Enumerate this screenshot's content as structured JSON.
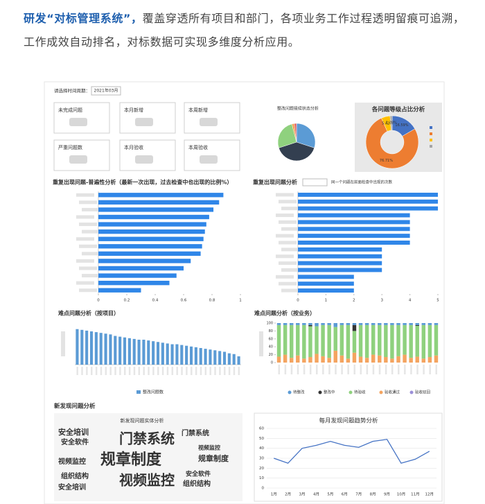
{
  "intro": {
    "lead": "研发“对标管理系统”，",
    "body": "覆盖穿透所有项目和部门，各项业务工作过程透明留痕可追溯，工作成效自动排名，对标数据可实现多维度分析应用。"
  },
  "filter": {
    "label": "请选择时间周期：",
    "value": "2021年03月"
  },
  "kpi_cards": [
    "未完成问题",
    "本月新增",
    "本周新增",
    "严重问题数",
    "本月验收",
    "本周验收"
  ],
  "section_title": "新发现问题分析",
  "chart_data": [
    {
      "type": "pie",
      "title": "整改问题接续状态分析",
      "values": [
        30,
        40,
        26,
        2,
        2
      ],
      "colors": [
        "#5b9bd5",
        "#333f50",
        "#8fd17e",
        "#f0a04b",
        "#e06666"
      ]
    },
    {
      "type": "donut",
      "title": "各问题等级占比分析",
      "values": [
        16.59,
        76.71,
        5.42,
        1.28
      ],
      "value_labels": [
        "16.59%",
        "76.71%",
        "5.42%",
        "1.28%"
      ],
      "colors": [
        "#4472c4",
        "#ed7d31",
        "#ffc000",
        "#a5a5a5"
      ]
    },
    {
      "type": "barh",
      "title": "重复出现问题-普遍性分析（最新一次出现，过去检查中也出现的比例%）",
      "categories": [
        null,
        null,
        null,
        null,
        null,
        null,
        null,
        null,
        null,
        null,
        null,
        null,
        null,
        null
      ],
      "values": [
        0.88,
        0.85,
        0.81,
        0.78,
        0.76,
        0.75,
        0.74,
        0.73,
        0.72,
        0.65,
        0.6,
        0.55,
        0.5,
        0.3
      ],
      "xlim": [
        0,
        1
      ],
      "xticks": [
        0,
        0.2,
        0.4,
        0.6,
        0.8,
        1
      ],
      "color": "#2f86e8"
    },
    {
      "type": "barh",
      "title": "重复出现问题分析",
      "subtitle": "同一个问题在前面检查中出现的次数",
      "categories": [
        null,
        null,
        null,
        null,
        null,
        null,
        null,
        null,
        null,
        null,
        null,
        null,
        null,
        null,
        null
      ],
      "values": [
        5,
        5,
        5,
        4,
        4,
        4,
        4,
        4,
        3,
        3,
        3,
        3,
        2,
        2,
        2
      ],
      "xlim": [
        0,
        5
      ],
      "xticks": [
        0,
        1,
        2,
        3,
        4,
        5
      ],
      "color": "#2f86e8"
    },
    {
      "type": "bar",
      "title": "难点问题分析（按项目）",
      "ylim": [
        0,
        55
      ],
      "series": [
        {
          "name": "整改问题数",
          "color": "#5b9bd5",
          "values": [
            47,
            46,
            45,
            44,
            43,
            42,
            41,
            40,
            38,
            37,
            36,
            35,
            34,
            33,
            33,
            32,
            31,
            30,
            29,
            28,
            27,
            27,
            26,
            25,
            24,
            23,
            22,
            21,
            20,
            19,
            18,
            17,
            15,
            14,
            11
          ]
        }
      ]
    },
    {
      "type": "stacked_bar",
      "title": "难点问题分析（按业务）",
      "ylim": [
        0,
        100
      ],
      "yticks": [
        0,
        20,
        40,
        60,
        80,
        100
      ],
      "series": [
        {
          "name": "待整改",
          "color": "#5b9bd5",
          "values": [
            5,
            5,
            5,
            5,
            5,
            5,
            8,
            5,
            5,
            10,
            5,
            5,
            5,
            5,
            5,
            5,
            5,
            5,
            5,
            5,
            5,
            5,
            5,
            5,
            5,
            5
          ]
        },
        {
          "name": "整改中",
          "color": "#333333",
          "values": [
            0,
            0,
            0,
            0,
            0,
            3,
            0,
            0,
            0,
            0,
            0,
            0,
            15,
            0,
            0,
            0,
            0,
            0,
            0,
            0,
            0,
            0,
            2,
            0,
            0,
            0
          ]
        },
        {
          "name": "待验收",
          "color": "#8fd17e",
          "values": [
            80,
            75,
            83,
            77,
            85,
            78,
            70,
            79,
            83,
            60,
            77,
            85,
            55,
            80,
            83,
            75,
            77,
            81,
            85,
            79,
            75,
            83,
            78,
            85,
            81,
            77
          ]
        },
        {
          "name": "验收通过",
          "color": "#f4a460",
          "values": [
            15,
            20,
            12,
            18,
            10,
            14,
            22,
            16,
            12,
            30,
            18,
            10,
            25,
            15,
            12,
            20,
            18,
            14,
            10,
            16,
            20,
            12,
            15,
            10,
            14,
            18
          ]
        },
        {
          "name": "验收驳回",
          "color": "#9b8fd8",
          "values": [
            0,
            0,
            0,
            0,
            0,
            0,
            0,
            0,
            0,
            0,
            0,
            0,
            0,
            0,
            0,
            0,
            0,
            0,
            0,
            0,
            0,
            0,
            0,
            0,
            0,
            0
          ]
        }
      ]
    },
    {
      "type": "wordcloud",
      "title": "新发现问题实体分析",
      "words": [
        "安全培训",
        "门禁系统",
        "安全软件",
        "规章制度",
        "视频监控",
        "组织结构",
        "门禁系统",
        "视频监控",
        "规章制度",
        "安全软件",
        "组织结构",
        "视频监控",
        "安全培训"
      ]
    },
    {
      "type": "line",
      "title": "每月发现问题趋势分析",
      "categories": [
        "1月",
        "2月",
        "3月",
        "4月",
        "5月",
        "6月",
        "7月",
        "8月",
        "9月",
        "10月",
        "11月",
        "12月"
      ],
      "values": [
        30,
        25,
        40,
        43,
        47,
        43,
        41,
        47,
        49,
        25,
        29,
        37
      ],
      "ylim": [
        0,
        60
      ],
      "yticks": [
        0,
        10,
        20,
        30,
        40,
        50,
        60
      ],
      "color": "#4472c4",
      "grid": true
    }
  ]
}
